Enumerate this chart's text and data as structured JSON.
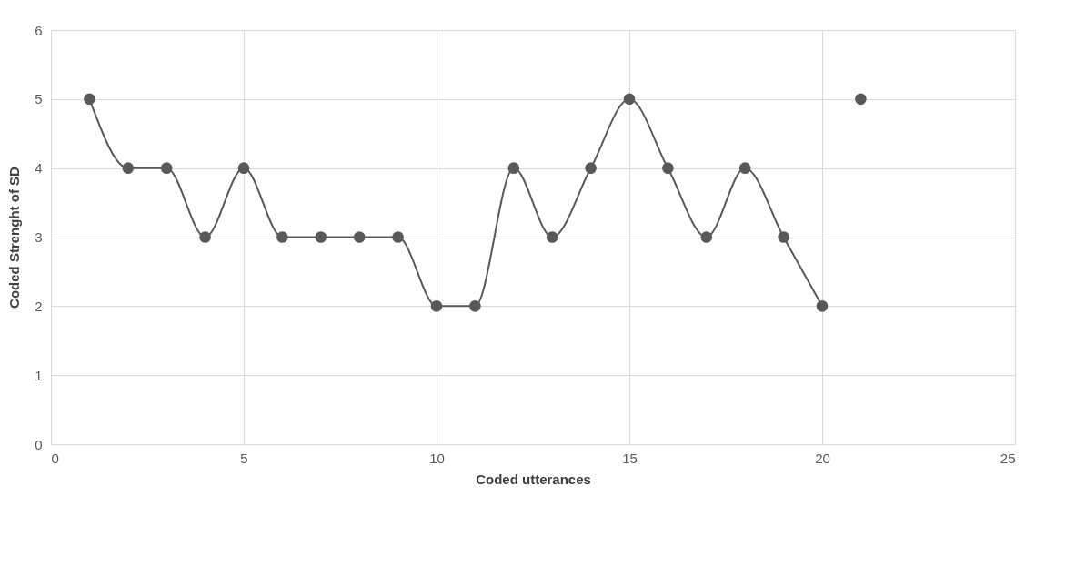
{
  "chart_data": {
    "type": "line",
    "xlabel": "Coded utterances",
    "ylabel": "Coded Strenght of SD",
    "xlim": [
      0,
      25
    ],
    "xticks": [
      0,
      5,
      10,
      15,
      20,
      25
    ],
    "ylim": [
      0,
      6
    ],
    "yticks": [
      0,
      1,
      2,
      3,
      4,
      5,
      6
    ],
    "grid": true,
    "marker": "circle",
    "line_style": "solid",
    "series": [
      {
        "color": "#595959",
        "x": [
          1,
          2,
          3,
          4,
          5,
          6,
          7,
          8,
          9,
          10,
          11,
          12,
          13,
          14,
          15,
          16,
          17,
          18,
          19,
          20
        ],
        "values": [
          5,
          4,
          4,
          3,
          4,
          3,
          3,
          3,
          3,
          2,
          2,
          4,
          3,
          4,
          5,
          4,
          3,
          4,
          3,
          2
        ]
      },
      {
        "type": "scatter",
        "color": "#595959",
        "x": [
          21
        ],
        "values": [
          5
        ]
      }
    ]
  }
}
